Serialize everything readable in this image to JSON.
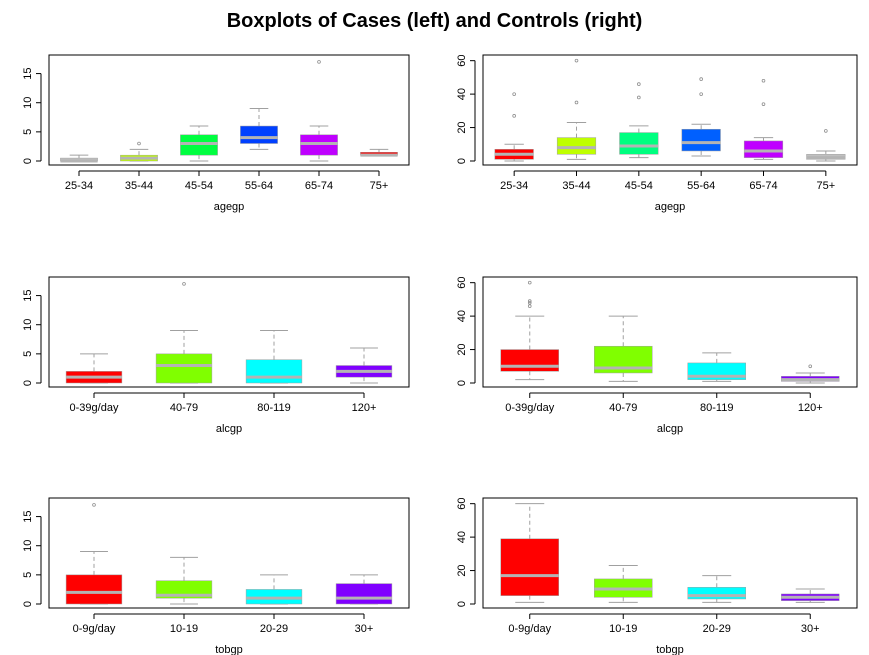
{
  "title": "Boxplots of Cases (left) and Controls (right)",
  "chart_data": [
    {
      "type": "box",
      "xlabel": "agegp",
      "ylim": [
        0,
        17.5
      ],
      "yticks": [
        0,
        5,
        10,
        15
      ],
      "categories": [
        "25-34",
        "35-44",
        "45-54",
        "55-64",
        "65-74",
        "75+"
      ],
      "colors": [
        "#C0C0C0",
        "#BFFF00",
        "#00FF40",
        "#0040FF",
        "#BF00FF",
        "#FF0000"
      ],
      "boxes": [
        {
          "min": 0,
          "q1": 0,
          "median": 0,
          "q3": 0.5,
          "max": 1,
          "outliers": []
        },
        {
          "min": 0,
          "q1": 0,
          "median": 0.5,
          "q3": 1,
          "max": 2,
          "outliers": [
            3
          ]
        },
        {
          "min": 0,
          "q1": 1,
          "median": 3,
          "q3": 4.5,
          "max": 6,
          "outliers": []
        },
        {
          "min": 2,
          "q1": 3,
          "median": 4,
          "q3": 6,
          "max": 9,
          "outliers": []
        },
        {
          "min": 0,
          "q1": 1,
          "median": 3,
          "q3": 4.5,
          "max": 6,
          "outliers": [
            17
          ]
        },
        {
          "min": 1,
          "q1": 1,
          "median": 1,
          "q3": 1.5,
          "max": 2,
          "outliers": []
        }
      ]
    },
    {
      "type": "box",
      "xlabel": "agegp",
      "ylim": [
        0,
        61
      ],
      "yticks": [
        0,
        20,
        40,
        60
      ],
      "categories": [
        "25-34",
        "35-44",
        "45-54",
        "55-64",
        "65-74",
        "75+"
      ],
      "colors": [
        "#FF0000",
        "#BFFF00",
        "#00FF80",
        "#0060FF",
        "#BF00FF",
        "#C0C0C0"
      ],
      "boxes": [
        {
          "min": 0,
          "q1": 1,
          "median": 4,
          "q3": 7,
          "max": 10,
          "outliers": [
            27,
            40
          ]
        },
        {
          "min": 1,
          "q1": 4,
          "median": 8,
          "q3": 14,
          "max": 23,
          "outliers": [
            35,
            60
          ]
        },
        {
          "min": 2,
          "q1": 4,
          "median": 9,
          "q3": 17,
          "max": 21,
          "outliers": [
            38,
            46
          ]
        },
        {
          "min": 3,
          "q1": 6,
          "median": 11,
          "q3": 19,
          "max": 22,
          "outliers": [
            40,
            49
          ]
        },
        {
          "min": 1,
          "q1": 2,
          "median": 6,
          "q3": 12,
          "max": 14,
          "outliers": [
            34,
            48
          ]
        },
        {
          "min": 0,
          "q1": 1,
          "median": 2,
          "q3": 4,
          "max": 6,
          "outliers": [
            18
          ]
        }
      ]
    },
    {
      "type": "box",
      "xlabel": "alcgp",
      "ylim": [
        0,
        17.5
      ],
      "yticks": [
        0,
        5,
        10,
        15
      ],
      "categories": [
        "0-39g/day",
        "40-79",
        "80-119",
        "120+"
      ],
      "colors": [
        "#FF0000",
        "#80FF00",
        "#00FFFF",
        "#8000FF"
      ],
      "boxes": [
        {
          "min": 0,
          "q1": 0,
          "median": 1,
          "q3": 2,
          "max": 5,
          "outliers": []
        },
        {
          "min": 0,
          "q1": 0,
          "median": 3,
          "q3": 5,
          "max": 9,
          "outliers": [
            17
          ]
        },
        {
          "min": 0,
          "q1": 0,
          "median": 1,
          "q3": 4,
          "max": 9,
          "outliers": []
        },
        {
          "min": 0,
          "q1": 1,
          "median": 2,
          "q3": 3,
          "max": 6,
          "outliers": []
        }
      ]
    },
    {
      "type": "box",
      "xlabel": "alcgp",
      "ylim": [
        0,
        61
      ],
      "yticks": [
        0,
        20,
        40,
        60
      ],
      "categories": [
        "0-39g/day",
        "40-79",
        "80-119",
        "120+"
      ],
      "colors": [
        "#FF0000",
        "#80FF00",
        "#00FFFF",
        "#8000FF"
      ],
      "boxes": [
        {
          "min": 2,
          "q1": 7,
          "median": 10,
          "q3": 20,
          "max": 40,
          "outliers": [
            46,
            48,
            49,
            60
          ]
        },
        {
          "min": 1,
          "q1": 6,
          "median": 9,
          "q3": 22,
          "max": 40,
          "outliers": []
        },
        {
          "min": 1,
          "q1": 2,
          "median": 4,
          "q3": 12,
          "max": 18,
          "outliers": []
        },
        {
          "min": 0,
          "q1": 1,
          "median": 2,
          "q3": 4,
          "max": 6,
          "outliers": [
            10
          ]
        }
      ]
    },
    {
      "type": "box",
      "xlabel": "tobgp",
      "ylim": [
        0,
        17.5
      ],
      "yticks": [
        0,
        5,
        10,
        15
      ],
      "categories": [
        "0-9g/day",
        "10-19",
        "20-29",
        "30+"
      ],
      "colors": [
        "#FF0000",
        "#80FF00",
        "#00FFFF",
        "#8000FF"
      ],
      "boxes": [
        {
          "min": 0,
          "q1": 0,
          "median": 2,
          "q3": 5,
          "max": 9,
          "outliers": [
            17
          ]
        },
        {
          "min": 0,
          "q1": 1,
          "median": 1.5,
          "q3": 4,
          "max": 8,
          "outliers": []
        },
        {
          "min": 0,
          "q1": 0,
          "median": 1,
          "q3": 2.5,
          "max": 5,
          "outliers": []
        },
        {
          "min": 0,
          "q1": 0,
          "median": 1,
          "q3": 3.5,
          "max": 5,
          "outliers": []
        }
      ]
    },
    {
      "type": "box",
      "xlabel": "tobgp",
      "ylim": [
        0,
        61
      ],
      "yticks": [
        0,
        20,
        40,
        60
      ],
      "categories": [
        "0-9g/day",
        "10-19",
        "20-29",
        "30+"
      ],
      "colors": [
        "#FF0000",
        "#80FF00",
        "#00FFFF",
        "#8000FF"
      ],
      "boxes": [
        {
          "min": 1,
          "q1": 5,
          "median": 17,
          "q3": 39,
          "max": 60,
          "outliers": []
        },
        {
          "min": 1,
          "q1": 4,
          "median": 9,
          "q3": 15,
          "max": 23,
          "outliers": []
        },
        {
          "min": 1,
          "q1": 3,
          "median": 5,
          "q3": 10,
          "max": 17,
          "outliers": []
        },
        {
          "min": 1,
          "q1": 2,
          "median": 4,
          "q3": 6,
          "max": 9,
          "outliers": []
        }
      ]
    }
  ]
}
